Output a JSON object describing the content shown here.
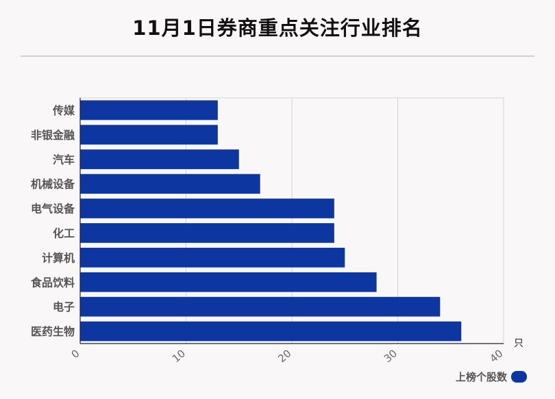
{
  "title": "11月1日券商重点关注行业排名",
  "chart_data": {
    "type": "bar",
    "orientation": "horizontal",
    "title": "11月1日券商重点关注行业排名",
    "categories": [
      "传媒",
      "非银金融",
      "汽车",
      "机械设备",
      "电气设备",
      "化工",
      "计算机",
      "食品饮料",
      "电子",
      "医药生物"
    ],
    "series": [
      {
        "name": "上榜个股数",
        "values": [
          13,
          13,
          15,
          17,
          24,
          24,
          25,
          28,
          34,
          36
        ]
      }
    ],
    "xlabel": "只",
    "xlim": [
      0,
      40
    ],
    "xticks": [
      0,
      10,
      20,
      30,
      40
    ],
    "grid": true,
    "legend": "bottom-right",
    "bar_color": "#0e36a0"
  }
}
